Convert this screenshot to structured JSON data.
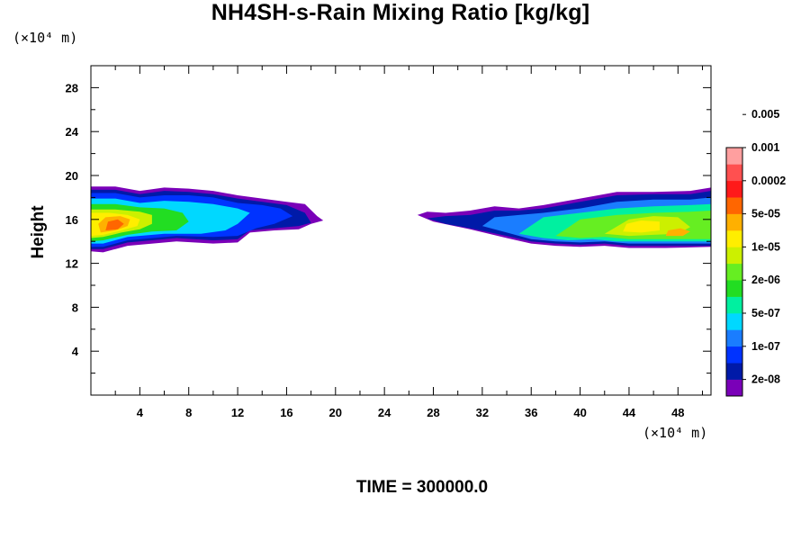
{
  "chart_data": {
    "type": "heatmap",
    "title": "NH4SH-s-Rain Mixing Ratio [kg/kg]",
    "ylabel": "Height",
    "xlabel": "",
    "x_unit": "(×10⁴ m)",
    "y_unit": "(×10⁴ m)",
    "xlim": [
      0,
      50.7
    ],
    "ylim": [
      0,
      30
    ],
    "x_ticks": [
      4,
      8,
      12,
      16,
      20,
      24,
      28,
      32,
      36,
      40,
      44,
      48
    ],
    "y_ticks": [
      4,
      8,
      12,
      16,
      20,
      24,
      28
    ],
    "footer": "TIME = 300000.0",
    "colorbar": {
      "levels": [
        "2e-08",
        "1e-07",
        "5e-07",
        "2e-06",
        "1e-05",
        "5e-05",
        "0.0002",
        "0.001",
        "0.005"
      ],
      "colors": [
        "#7a00b8",
        "#001aa8",
        "#0033ff",
        "#1a7dff",
        "#00d8ff",
        "#00f0a0",
        "#22dd22",
        "#66ee22",
        "#ccf000",
        "#ffee00",
        "#ffb000",
        "#ff6600",
        "#ff1a1a",
        "#ff5050",
        "#ff9f9f"
      ]
    },
    "regions": [
      {
        "name": "left",
        "bands": [
          {
            "level": 0,
            "poly": [
              [
                0,
                13.1
              ],
              [
                1,
                13.0
              ],
              [
                3,
                13.6
              ],
              [
                7,
                14.0
              ],
              [
                10,
                13.8
              ],
              [
                12,
                13.9
              ],
              [
                13,
                14.8
              ],
              [
                15,
                15.0
              ],
              [
                17,
                15.1
              ],
              [
                18,
                15.6
              ],
              [
                19,
                15.9
              ],
              [
                18.5,
                16.3
              ],
              [
                17.5,
                17.4
              ],
              [
                16,
                17.6
              ],
              [
                14,
                17.9
              ],
              [
                12,
                18.2
              ],
              [
                10,
                18.6
              ],
              [
                8,
                18.8
              ],
              [
                6,
                18.9
              ],
              [
                4,
                18.6
              ],
              [
                2,
                19.0
              ],
              [
                0,
                19.0
              ]
            ]
          },
          {
            "level": 1,
            "poly": [
              [
                0,
                13.3
              ],
              [
                1,
                13.3
              ],
              [
                3,
                13.9
              ],
              [
                7,
                14.3
              ],
              [
                10,
                14.1
              ],
              [
                12,
                14.2
              ],
              [
                13,
                15.0
              ],
              [
                15,
                15.2
              ],
              [
                17,
                15.4
              ],
              [
                18,
                15.7
              ],
              [
                17.5,
                16.6
              ],
              [
                16,
                17.3
              ],
              [
                14,
                17.6
              ],
              [
                12,
                17.9
              ],
              [
                10,
                18.3
              ],
              [
                8,
                18.5
              ],
              [
                6,
                18.6
              ],
              [
                4,
                18.3
              ],
              [
                2,
                18.7
              ],
              [
                0,
                18.7
              ]
            ]
          },
          {
            "level": 2,
            "poly": [
              [
                0,
                13.5
              ],
              [
                1,
                13.5
              ],
              [
                3,
                14.1
              ],
              [
                7,
                14.5
              ],
              [
                10,
                14.4
              ],
              [
                12,
                14.5
              ],
              [
                13.5,
                15.2
              ],
              [
                15,
                15.6
              ],
              [
                16.5,
                16.3
              ],
              [
                15.5,
                17.0
              ],
              [
                14,
                17.3
              ],
              [
                12,
                17.5
              ],
              [
                10,
                18.0
              ],
              [
                8,
                18.2
              ],
              [
                6,
                18.2
              ],
              [
                4,
                18.0
              ],
              [
                2,
                18.4
              ],
              [
                0,
                18.4
              ]
            ]
          },
          {
            "level": 4,
            "poly": [
              [
                0,
                13.8
              ],
              [
                1,
                13.8
              ],
              [
                3,
                14.4
              ],
              [
                6,
                14.7
              ],
              [
                9,
                14.7
              ],
              [
                11,
                15.0
              ],
              [
                12,
                15.6
              ],
              [
                13,
                16.6
              ],
              [
                12,
                17.0
              ],
              [
                10,
                17.4
              ],
              [
                8,
                17.6
              ],
              [
                6,
                17.7
              ],
              [
                4,
                17.5
              ],
              [
                2,
                17.9
              ],
              [
                0,
                17.9
              ]
            ]
          },
          {
            "level": 6,
            "poly": [
              [
                0,
                14.0
              ],
              [
                1,
                14.1
              ],
              [
                3,
                14.6
              ],
              [
                5,
                14.9
              ],
              [
                7,
                15.0
              ],
              [
                8,
                15.8
              ],
              [
                7.5,
                16.6
              ],
              [
                6,
                17.0
              ],
              [
                4,
                17.1
              ],
              [
                2,
                17.4
              ],
              [
                0,
                17.4
              ]
            ]
          },
          {
            "level": 8,
            "poly": [
              [
                0,
                14.3
              ],
              [
                1,
                14.4
              ],
              [
                2.5,
                14.8
              ],
              [
                4,
                15.1
              ],
              [
                5,
                15.6
              ],
              [
                5,
                16.4
              ],
              [
                4,
                16.7
              ],
              [
                2,
                16.9
              ],
              [
                0,
                16.9
              ]
            ]
          },
          {
            "level": 9,
            "poly": [
              [
                0,
                14.5
              ],
              [
                1,
                14.6
              ],
              [
                2.5,
                15.0
              ],
              [
                3.8,
                15.4
              ],
              [
                4,
                16.0
              ],
              [
                3,
                16.4
              ],
              [
                1.5,
                16.6
              ],
              [
                0,
                16.6
              ]
            ]
          },
          {
            "level": 10,
            "poly": [
              [
                0.8,
                14.8
              ],
              [
                2,
                15.0
              ],
              [
                3,
                15.4
              ],
              [
                3.2,
                16.0
              ],
              [
                2.4,
                16.3
              ],
              [
                1.2,
                16.2
              ],
              [
                0.6,
                15.6
              ]
            ]
          },
          {
            "level": 11,
            "poly": [
              [
                1.2,
                15.0
              ],
              [
                2.2,
                15.1
              ],
              [
                2.7,
                15.6
              ],
              [
                2.2,
                16.0
              ],
              [
                1.4,
                15.8
              ]
            ]
          }
        ]
      },
      {
        "name": "right",
        "bands": [
          {
            "level": 0,
            "poly": [
              [
                26.7,
                16.4
              ],
              [
                28,
                15.8
              ],
              [
                31,
                15.1
              ],
              [
                34,
                14.3
              ],
              [
                36,
                13.8
              ],
              [
                38,
                13.6
              ],
              [
                40,
                13.5
              ],
              [
                42,
                13.6
              ],
              [
                44,
                13.4
              ],
              [
                47,
                13.4
              ],
              [
                50.7,
                13.5
              ],
              [
                50.7,
                18.9
              ],
              [
                49,
                18.6
              ],
              [
                46,
                18.5
              ],
              [
                43,
                18.5
              ],
              [
                40,
                17.9
              ],
              [
                37,
                17.3
              ],
              [
                35,
                17.0
              ],
              [
                33,
                17.2
              ],
              [
                31,
                16.8
              ],
              [
                29,
                16.6
              ],
              [
                27.5,
                16.7
              ]
            ]
          },
          {
            "level": 1,
            "poly": [
              [
                27.5,
                16.1
              ],
              [
                29,
                15.6
              ],
              [
                31,
                15.2
              ],
              [
                34,
                14.5
              ],
              [
                36,
                14.0
              ],
              [
                38,
                13.8
              ],
              [
                40,
                13.7
              ],
              [
                42,
                13.8
              ],
              [
                44,
                13.6
              ],
              [
                47,
                13.6
              ],
              [
                50.7,
                13.6
              ],
              [
                50.7,
                18.6
              ],
              [
                49,
                18.3
              ],
              [
                46,
                18.3
              ],
              [
                43,
                18.2
              ],
              [
                40,
                17.6
              ],
              [
                37,
                17.0
              ],
              [
                35,
                16.8
              ],
              [
                33,
                16.8
              ],
              [
                31,
                16.4
              ],
              [
                29,
                16.3
              ]
            ]
          },
          {
            "level": 3,
            "poly": [
              [
                32,
                15.4
              ],
              [
                34,
                14.8
              ],
              [
                36,
                14.2
              ],
              [
                38,
                14.0
              ],
              [
                40,
                13.9
              ],
              [
                42,
                14.0
              ],
              [
                44,
                13.8
              ],
              [
                47,
                13.8
              ],
              [
                50.7,
                13.8
              ],
              [
                50.7,
                18.0
              ],
              [
                49,
                17.8
              ],
              [
                46,
                17.8
              ],
              [
                43,
                17.6
              ],
              [
                40,
                17.0
              ],
              [
                37,
                16.6
              ],
              [
                35,
                16.4
              ],
              [
                33,
                16.2
              ]
            ]
          },
          {
            "level": 5,
            "poly": [
              [
                35,
                14.7
              ],
              [
                37,
                14.3
              ],
              [
                39,
                14.1
              ],
              [
                41,
                14.2
              ],
              [
                43,
                14.0
              ],
              [
                46,
                14.0
              ],
              [
                50.7,
                14.0
              ],
              [
                50.7,
                17.4
              ],
              [
                49,
                17.3
              ],
              [
                46,
                17.2
              ],
              [
                43,
                17.0
              ],
              [
                40,
                16.6
              ],
              [
                37,
                16.2
              ]
            ]
          },
          {
            "level": 7,
            "poly": [
              [
                38,
                14.5
              ],
              [
                40,
                14.3
              ],
              [
                42,
                14.4
              ],
              [
                44,
                14.2
              ],
              [
                47,
                14.2
              ],
              [
                50.7,
                14.2
              ],
              [
                50.7,
                16.8
              ],
              [
                49,
                16.7
              ],
              [
                46,
                16.6
              ],
              [
                43,
                16.4
              ],
              [
                40,
                16.0
              ]
            ]
          },
          {
            "level": 8,
            "poly": [
              [
                42,
                14.7
              ],
              [
                44,
                14.5
              ],
              [
                46,
                14.6
              ],
              [
                48,
                14.7
              ],
              [
                49,
                15.3
              ],
              [
                48,
                16.2
              ],
              [
                46,
                16.3
              ],
              [
                44,
                16.0
              ]
            ]
          },
          {
            "level": 9,
            "poly": [
              [
                43.5,
                14.9
              ],
              [
                45,
                14.8
              ],
              [
                46.5,
                15.0
              ],
              [
                46.5,
                15.8
              ],
              [
                45,
                15.9
              ],
              [
                43.8,
                15.6
              ]
            ]
          },
          {
            "level": 10,
            "poly": [
              [
                47,
                14.5
              ],
              [
                48.4,
                14.5
              ],
              [
                49,
                14.9
              ],
              [
                48.2,
                15.2
              ],
              [
                47.2,
                15.0
              ]
            ]
          }
        ]
      }
    ]
  },
  "labels": {
    "title": "NH4SH-s-Rain Mixing Ratio [kg/kg]",
    "y_unit": "(×10⁴ m)",
    "x_unit": "(×10⁴ m)",
    "ylabel": "Height",
    "footer": "TIME = 300000.0"
  }
}
